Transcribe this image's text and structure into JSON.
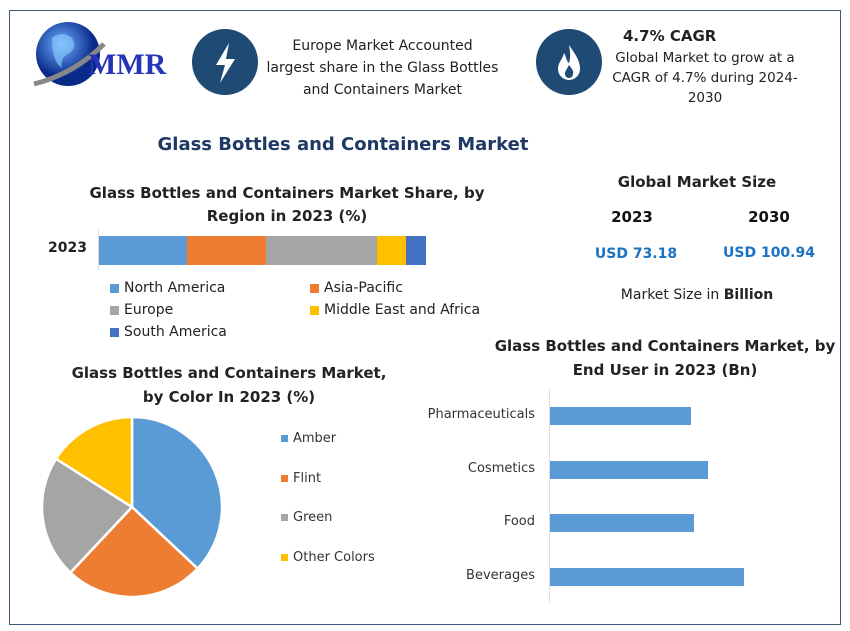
{
  "logo": {
    "text": "MMR"
  },
  "header": {
    "highlight1": {
      "icon": "lightning-icon",
      "lines": [
        "Europe Market Accounted",
        "largest share in the Glass Bottles",
        "and Containers Market"
      ]
    },
    "highlight2": {
      "icon": "flame-icon",
      "title": "4.7% CAGR",
      "lines": [
        "Global Market to grow at a",
        "CAGR of 4.7% during 2024-",
        "2030"
      ]
    }
  },
  "main_title": "Glass Bottles and Containers Market",
  "market_size": {
    "title": "Global Market Size",
    "year1": "2023",
    "year2": "2030",
    "value1": "USD 73.18",
    "value2": "USD 100.94",
    "footer_prefix": "Market Size in ",
    "footer_bold": "Billion",
    "value_color": "#1b72c0"
  },
  "chart_data": [
    {
      "type": "bar",
      "stacked": true,
      "orientation": "horizontal",
      "title_lines": [
        "Glass Bottles and Containers Market Share, by",
        "Region in 2023 (%)"
      ],
      "categories": [
        "2023"
      ],
      "series": [
        {
          "name": "North America",
          "values": [
            27
          ],
          "color": "#5b9bd5"
        },
        {
          "name": "Asia-Pacific",
          "values": [
            24
          ],
          "color": "#ed7d31"
        },
        {
          "name": "Europe",
          "values": [
            34
          ],
          "color": "#a5a5a5"
        },
        {
          "name": "Middle East and Africa",
          "values": [
            9
          ],
          "color": "#ffc000"
        },
        {
          "name": "South America",
          "values": [
            6
          ],
          "color": "#4472c4"
        }
      ],
      "legend": "bottom"
    },
    {
      "type": "pie",
      "title_lines": [
        "Glass Bottles and Containers Market,",
        "by Color In 2023 (%)"
      ],
      "labels": [
        "Amber",
        "Flint",
        "Green",
        "Other Colors"
      ],
      "values": [
        37,
        25,
        22,
        16
      ],
      "colors": [
        "#5b9bd5",
        "#ed7d31",
        "#a5a5a5",
        "#ffc000"
      ],
      "legend": "right"
    },
    {
      "type": "bar",
      "orientation": "horizontal",
      "title_lines": [
        "Glass Bottles and Containers Market, by",
        "End User in 2023 (Bn)"
      ],
      "categories": [
        "Pharmaceuticals",
        "Cosmetics",
        "Food",
        "Beverages"
      ],
      "values": [
        16.2,
        18.2,
        16.5,
        22.3
      ],
      "color": "#5b9bd5",
      "xlim": [
        0,
        30
      ]
    }
  ]
}
